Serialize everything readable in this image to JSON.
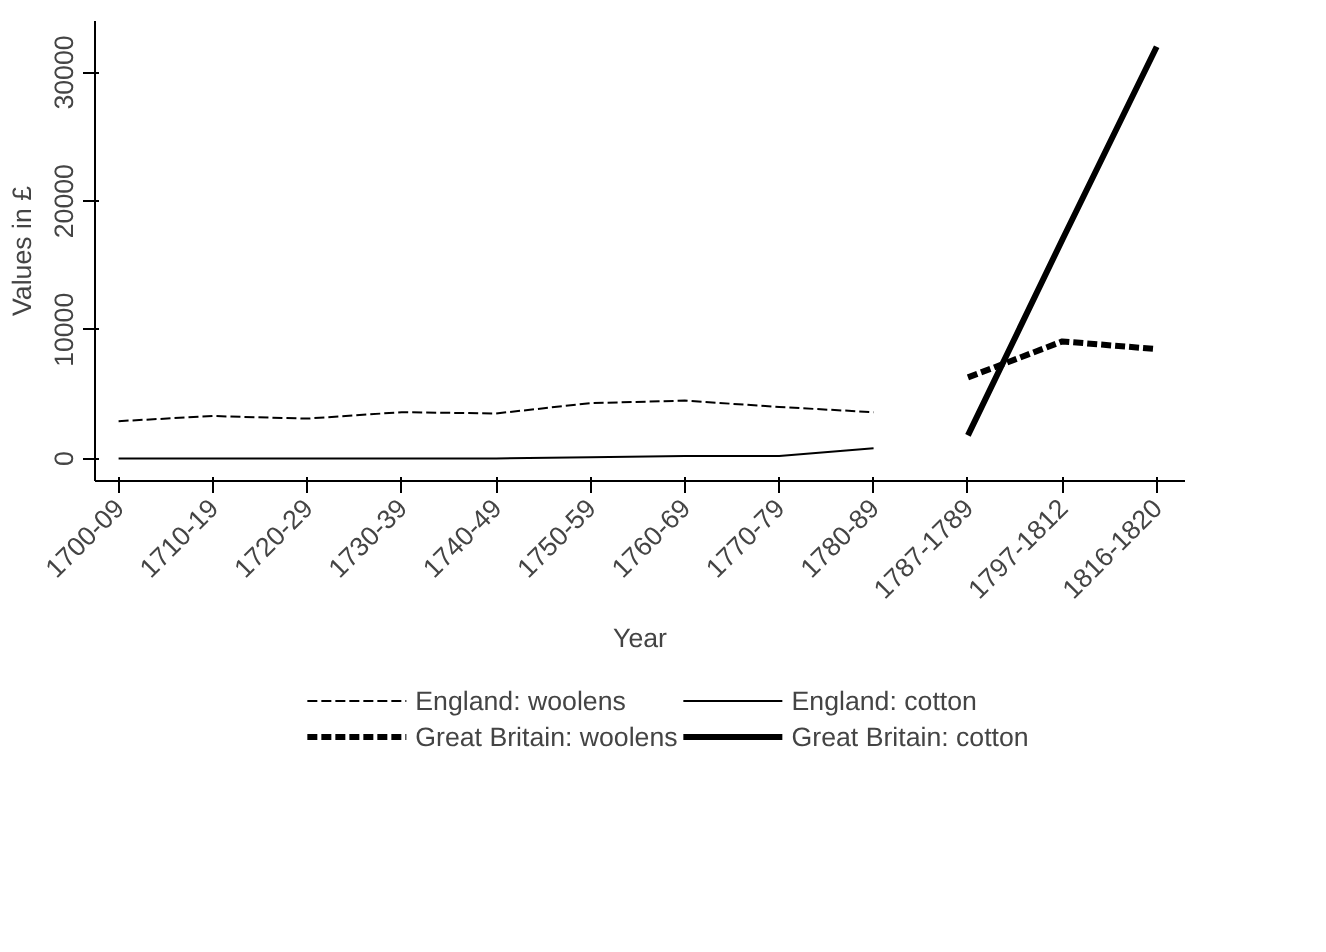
{
  "chart_data": {
    "type": "line",
    "xlabel": "Year",
    "ylabel": "Values in £",
    "categories": [
      "1700-09",
      "1710-19",
      "1720-29",
      "1730-39",
      "1740-49",
      "1750-59",
      "1760-69",
      "1770-79",
      "1780-89",
      "1787-1789",
      "1797-1812",
      "1816-1820"
    ],
    "ylim": [
      -1750,
      34000
    ],
    "yticks": [
      0,
      10000,
      20000,
      30000
    ],
    "grid": false,
    "legend": "bottom",
    "marker": "none",
    "series": [
      {
        "name": "England: woolens",
        "color": "#000000",
        "line_style": "dashed",
        "values": [
          2900,
          3300,
          3100,
          3600,
          3500,
          4300,
          4500,
          4000,
          3600,
          null,
          null,
          null
        ]
      },
      {
        "name": "Great Britain: woolens",
        "color": "#000000",
        "line_style": "dashed",
        "values": [
          null,
          null,
          null,
          null,
          null,
          null,
          null,
          null,
          null,
          6300,
          9100,
          8500
        ]
      },
      {
        "name": "England: cotton",
        "color": "#000000",
        "line_style": "solid",
        "values": [
          0,
          0,
          0,
          0,
          0,
          100,
          200,
          200,
          800,
          null,
          null,
          null
        ]
      },
      {
        "name": "Great Britain: cotton",
        "color": "#000000",
        "line_style": "solid",
        "values": [
          null,
          null,
          null,
          null,
          null,
          null,
          null,
          null,
          null,
          1800,
          17000,
          32000
        ]
      }
    ]
  }
}
